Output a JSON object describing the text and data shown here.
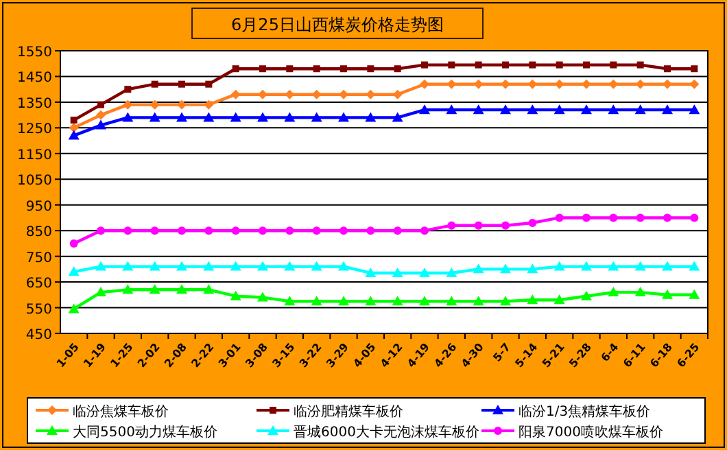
{
  "chart_data": {
    "type": "line",
    "title": "6月25日山西煤炭价格走势图",
    "categories": [
      "1-05",
      "1-19",
      "1-25",
      "2-02",
      "2-08",
      "2-22",
      "3-01",
      "3-08",
      "3-15",
      "3-22",
      "3-29",
      "4-05",
      "4-12",
      "4-19",
      "4-26",
      "4-30",
      "5-7",
      "5-14",
      "5-21",
      "5-28",
      "6-4",
      "6-11",
      "6-18",
      "6-25"
    ],
    "series": [
      {
        "name": "临汾焦煤车板价",
        "color": "#ff8020",
        "marker": "diamond",
        "values": [
          1250,
          1300,
          1340,
          1340,
          1340,
          1340,
          1380,
          1380,
          1380,
          1380,
          1380,
          1380,
          1380,
          1420,
          1420,
          1420,
          1420,
          1420,
          1420,
          1420,
          1420,
          1420,
          1420,
          1420
        ]
      },
      {
        "name": "临汾肥精煤车板价",
        "color": "#800000",
        "marker": "square",
        "values": [
          1280,
          1340,
          1400,
          1420,
          1420,
          1420,
          1480,
          1480,
          1480,
          1480,
          1480,
          1480,
          1480,
          1495,
          1495,
          1495,
          1495,
          1495,
          1495,
          1495,
          1495,
          1495,
          1480,
          1480
        ]
      },
      {
        "name": "临汾1/3焦精煤车板价",
        "color": "#0000ff",
        "marker": "triangle",
        "values": [
          1220,
          1260,
          1290,
          1290,
          1290,
          1290,
          1290,
          1290,
          1290,
          1290,
          1290,
          1290,
          1290,
          1320,
          1320,
          1320,
          1320,
          1320,
          1320,
          1320,
          1320,
          1320,
          1320,
          1320
        ]
      },
      {
        "name": "大同5500动力煤车板价",
        "color": "#00ff00",
        "marker": "triangle",
        "values": [
          545,
          610,
          620,
          620,
          620,
          620,
          595,
          590,
          575,
          575,
          575,
          575,
          575,
          575,
          575,
          575,
          575,
          580,
          580,
          595,
          610,
          610,
          600,
          600
        ]
      },
      {
        "name": "晋城6000大卡无泡沫煤车板价",
        "color": "#00ffff",
        "marker": "triangle",
        "values": [
          690,
          710,
          710,
          710,
          710,
          710,
          710,
          710,
          710,
          710,
          710,
          685,
          685,
          685,
          685,
          700,
          700,
          700,
          710,
          710,
          710,
          710,
          710,
          710
        ]
      },
      {
        "name": "阳泉7000喷吹煤车板价",
        "color": "#ff00ff",
        "marker": "circle",
        "values": [
          800,
          850,
          850,
          850,
          850,
          850,
          850,
          850,
          850,
          850,
          850,
          850,
          850,
          850,
          870,
          870,
          870,
          880,
          900,
          900,
          900,
          900,
          900,
          900
        ]
      }
    ],
    "ylim": [
      450,
      1550
    ],
    "yticks": [
      450,
      550,
      650,
      750,
      850,
      950,
      1050,
      1150,
      1250,
      1350,
      1450,
      1550
    ],
    "grid": "y",
    "legend": "bottom",
    "line_style": "solid"
  }
}
